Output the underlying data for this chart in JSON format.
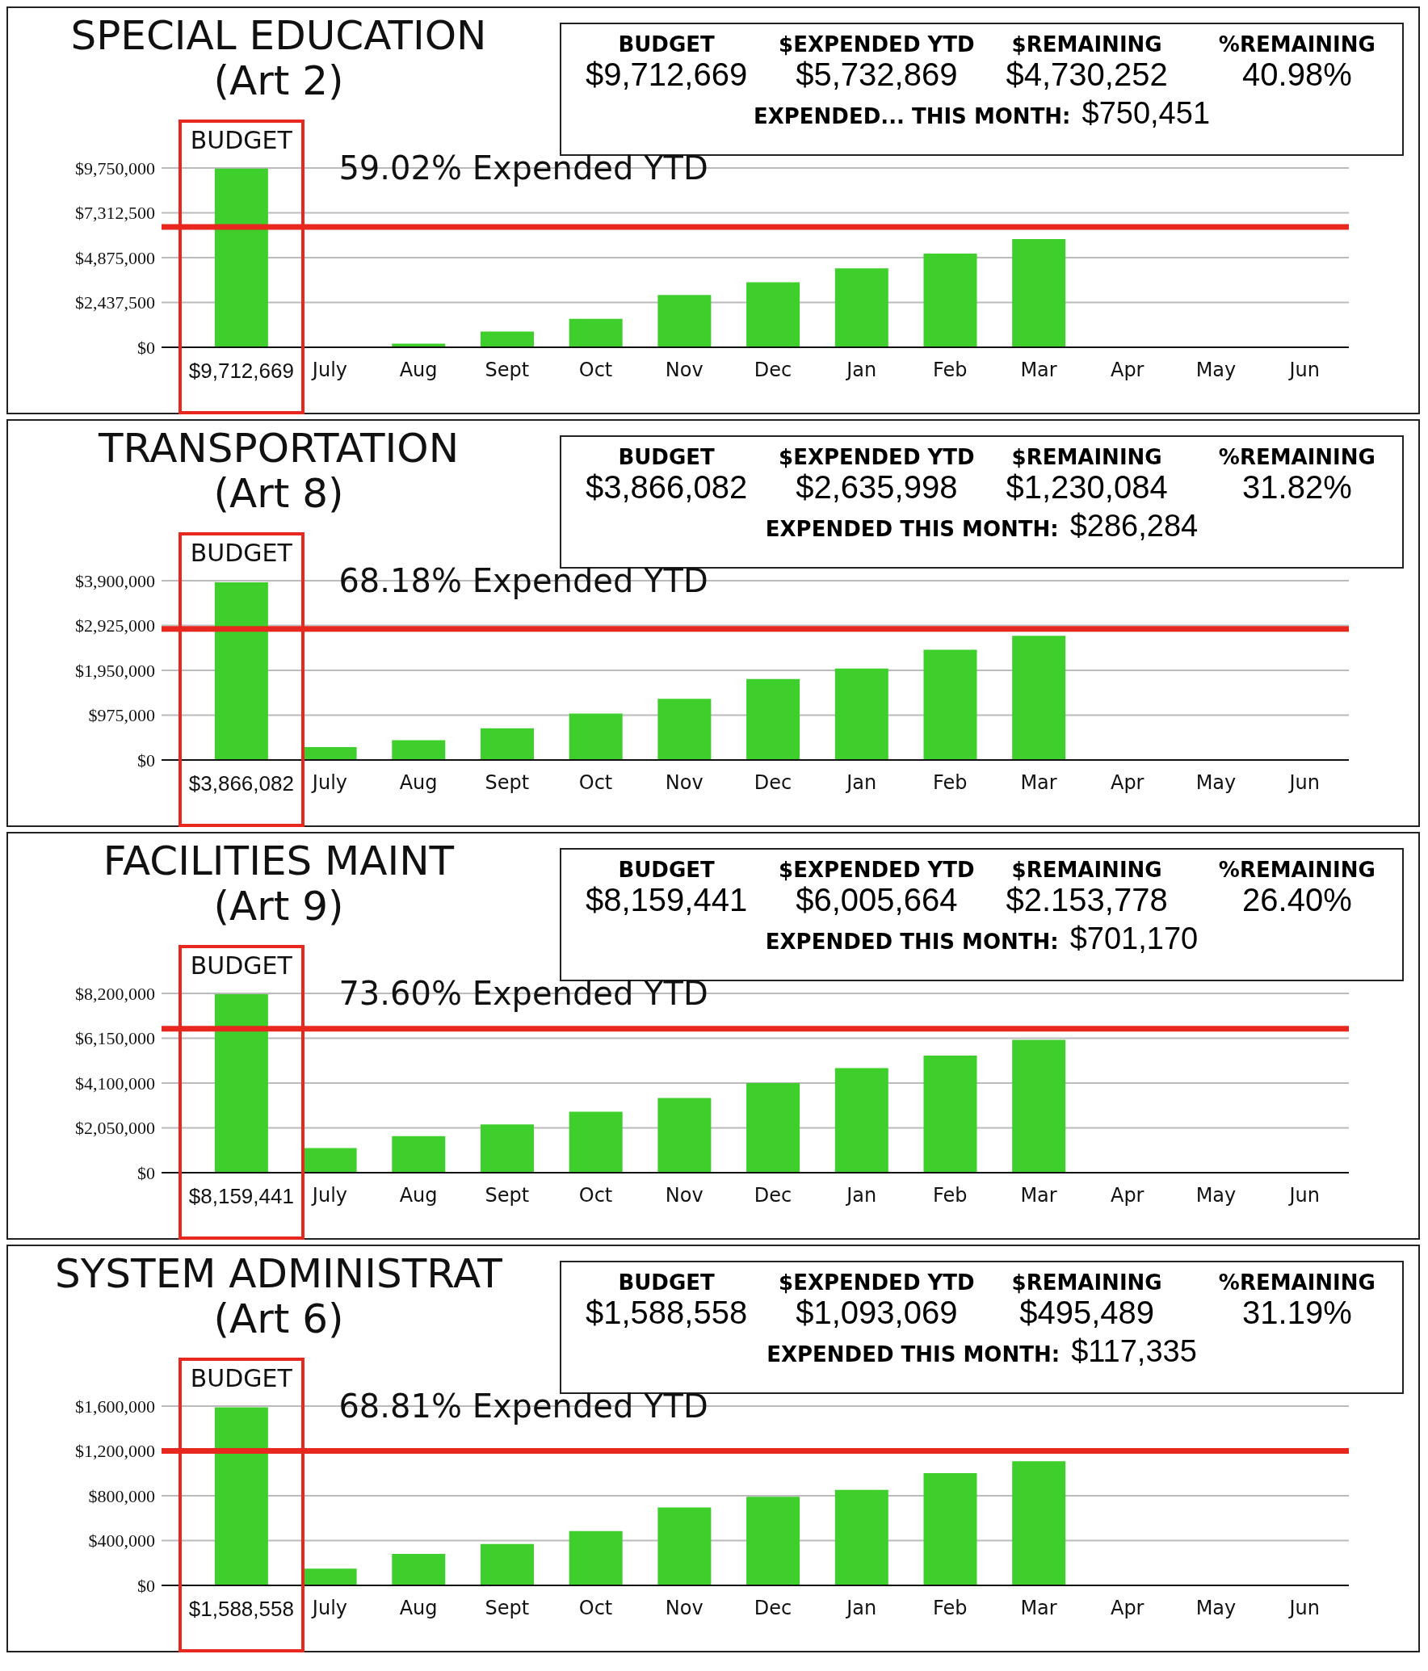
{
  "chart_data": [
    {
      "type": "bar",
      "title": "SPECIAL EDUCATION",
      "subtitle": "(Art 2)",
      "categories": [
        null,
        "July",
        "Aug",
        "Sept",
        "Oct",
        "Nov",
        "Dec",
        "Jan",
        "Feb",
        "Mar",
        "Apr",
        "May",
        "Jun"
      ],
      "values": [
        9712669,
        null,
        200000,
        860000,
        1550000,
        2840000,
        3540000,
        4290000,
        5090000,
        5890000,
        null,
        null,
        null
      ],
      "value_labels": [
        "$9,712,669",
        null,
        null,
        null,
        null,
        null,
        null,
        null,
        null,
        null,
        null,
        null,
        null
      ],
      "color": "#3ecf2c",
      "ylim": [
        0,
        9750000
      ],
      "yticks": [
        {
          "value": 0,
          "label": "$0"
        },
        {
          "value": 2437500,
          "label": "$2,437,500"
        },
        {
          "value": 4875000,
          "label": "$4,875,000"
        },
        {
          "value": 7312500,
          "label": "$7,312,500"
        },
        {
          "value": 9750000,
          "label": "$9,750,000"
        }
      ],
      "grid": "y",
      "ref_lines": [
        {
          "axis": "y",
          "value": 6540000,
          "label": "59.02% Expended YTD",
          "color": "#e8281e"
        }
      ],
      "annotations": [
        "BUDGET",
        "$EXPENDED YTD",
        "$REMAINING",
        "%REMAINING",
        "$9,712,669",
        "$5,732,869",
        "$4,730,252",
        "40.98%",
        "EXPENDED... THIS MONTH:",
        "$750,451",
        "BUDGET"
      ]
    },
    {
      "type": "bar",
      "title": "TRANSPORTATION",
      "subtitle": "(Art 8)",
      "categories": [
        null,
        "July",
        "Aug",
        "Sept",
        "Oct",
        "Nov",
        "Dec",
        "Jan",
        "Feb",
        "Mar",
        "Apr",
        "May",
        "Jun"
      ],
      "values": [
        3866082,
        280000,
        430000,
        690000,
        1010000,
        1330000,
        1760000,
        1990000,
        2400000,
        2700000,
        null,
        null,
        null
      ],
      "value_labels": [
        "$3,866,082",
        null,
        null,
        null,
        null,
        null,
        null,
        null,
        null,
        null,
        null,
        null,
        null
      ],
      "color": "#3ecf2c",
      "ylim": [
        0,
        3900000
      ],
      "yticks": [
        {
          "value": 0,
          "label": "$0"
        },
        {
          "value": 975000,
          "label": "$975,000"
        },
        {
          "value": 1950000,
          "label": "$1,950,000"
        },
        {
          "value": 2925000,
          "label": "$2,925,000"
        },
        {
          "value": 3900000,
          "label": "$3,900,000"
        }
      ],
      "grid": "y",
      "ref_lines": [
        {
          "axis": "y",
          "value": 2850000,
          "label": "68.18% Expended YTD",
          "color": "#e8281e"
        }
      ],
      "annotations": [
        "BUDGET",
        "$EXPENDED YTD",
        "$REMAINING",
        "%REMAINING",
        "$3,866,082",
        "$2,635,998",
        "$1,230,084",
        "31.82%",
        "EXPENDED THIS MONTH:",
        "$286,284",
        "BUDGET"
      ]
    },
    {
      "type": "bar",
      "title": "FACILITIES MAINT",
      "subtitle": "(Art 9)",
      "categories": [
        null,
        "July",
        "Aug",
        "Sept",
        "Oct",
        "Nov",
        "Dec",
        "Jan",
        "Feb",
        "Mar",
        "Apr",
        "May",
        "Jun"
      ],
      "values": [
        8159441,
        1130000,
        1670000,
        2210000,
        2790000,
        3420000,
        4100000,
        4780000,
        5360000,
        6080000,
        null,
        null,
        null
      ],
      "value_labels": [
        "$8,159,441",
        null,
        null,
        null,
        null,
        null,
        null,
        null,
        null,
        null,
        null,
        null,
        null
      ],
      "color": "#3ecf2c",
      "ylim": [
        0,
        8200000
      ],
      "yticks": [
        {
          "value": 0,
          "label": "$0"
        },
        {
          "value": 2050000,
          "label": "$2,050,000"
        },
        {
          "value": 4100000,
          "label": "$4,100,000"
        },
        {
          "value": 6150000,
          "label": "$6,150,000"
        },
        {
          "value": 8200000,
          "label": "$8,200,000"
        }
      ],
      "grid": "y",
      "ref_lines": [
        {
          "axis": "y",
          "value": 6580000,
          "label": "73.60% Expended YTD",
          "color": "#e8281e"
        }
      ],
      "annotations": [
        "BUDGET",
        "$EXPENDED YTD",
        "$REMAINING",
        "%REMAINING",
        "$8,159,441",
        "$6,005,664",
        "$2.153,778",
        "26.40%",
        "EXPENDED THIS MONTH:",
        "$701,170",
        "BUDGET"
      ]
    },
    {
      "type": "bar",
      "title": "SYSTEM ADMINISTRAT",
      "subtitle": "(Art 6)",
      "categories": [
        null,
        "July",
        "Aug",
        "Sept",
        "Oct",
        "Nov",
        "Dec",
        "Jan",
        "Feb",
        "Mar",
        "Apr",
        "May",
        "Jun"
      ],
      "values": [
        1588558,
        149000,
        281000,
        369000,
        484000,
        695000,
        791000,
        853000,
        1002000,
        1108000,
        null,
        null,
        null
      ],
      "value_labels": [
        "$1,588,558",
        null,
        null,
        null,
        null,
        null,
        null,
        null,
        null,
        null,
        null,
        null,
        null
      ],
      "color": "#3ecf2c",
      "ylim": [
        0,
        1600000
      ],
      "yticks": [
        {
          "value": 0,
          "label": "$0"
        },
        {
          "value": 400000,
          "label": "$400,000"
        },
        {
          "value": 800000,
          "label": "$800,000"
        },
        {
          "value": 1200000,
          "label": "$1,200,000"
        },
        {
          "value": 1600000,
          "label": "$1,600,000"
        }
      ],
      "grid": "y",
      "ref_lines": [
        {
          "axis": "y",
          "value": 1200000,
          "label": "68.81% Expended YTD",
          "color": "#e8281e"
        }
      ],
      "annotations": [
        "BUDGET",
        "$EXPENDED YTD",
        "$REMAINING",
        "%REMAINING",
        "$1,588,558",
        "$1,093,069",
        "$495,489",
        "31.19%",
        "EXPENDED THIS MONTH:",
        "$117,335",
        "BUDGET"
      ]
    }
  ]
}
